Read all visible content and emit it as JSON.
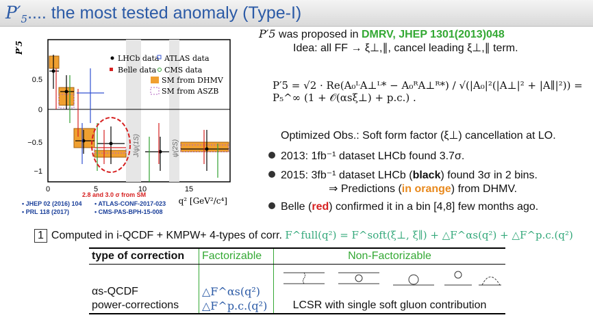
{
  "title": {
    "prefix": "P",
    "sup": "′",
    "sub": "5",
    "text": ".... the most tested anomaly (Type-I)"
  },
  "header": {
    "line1_sym": "P′5",
    "line1_text": " was proposed in ",
    "line1_ref": "DMRV, JHEP 1301(2013)048",
    "line2": "Idea: all FF → ξ⊥,∥, cancel leading ξ⊥,∥ term."
  },
  "equation": "P′5 = √2 · Re(A₀ᴸA⊥ᴸ* − A₀ᴿA⊥ᴿ*) / √(|A₀|²(|A⊥|² + |A∥|²)) = P₅^∞ (1 + 𝒪(αsξ⊥) + p.c.) .",
  "optimized": "Optimized Obs.: Soft form factor (ξ⊥) cancellation at LO.",
  "bullets": {
    "b1": "2013: 1fb⁻¹ dataset LHCb found 3.7σ.",
    "b2_a": "2015: 3fb⁻¹ dataset LHCb (",
    "b2_b": "black",
    "b2_c": ") found 3σ in 2 bins.",
    "b2_d": "⇒ Predictions (",
    "b2_e": "in orange",
    "b2_f": ") from DHMV.",
    "b3_a": "Belle (",
    "b3_b": "red",
    "b3_c": ") confirmed it in a bin [4,8] few months ago."
  },
  "computed": {
    "num": "1",
    "text": "Computed in i-QCDF + KMPW+ 4-types of corr. ",
    "formula": "F^full(q²) = F^soft(ξ⊥, ξ∥) + △F^αs(q²) + △F^p.c.(q²)"
  },
  "table": {
    "h1": "type of correction",
    "h2": "Factorizable",
    "h3": "Non-Factorizable",
    "r1c1": "αs-QCDF",
    "r1c2": "△F^αs(q²)",
    "r2c1": "power-corrections",
    "r2c2": "△F^p.c.(q²)",
    "r2c3": "LCSR with single soft gluon contribution"
  },
  "plot": {
    "ylabel": "P′5",
    "xlabel": "q² [GeV²/c⁴]",
    "yticks": [
      "0.5",
      "0",
      "−0.5",
      "−1"
    ],
    "xticks": [
      "0",
      "5",
      "10",
      "15"
    ],
    "legend": {
      "lhcb": "LHCb data",
      "belle": "Belle data",
      "atlas": "ATLAS data",
      "cms": "CMS data",
      "dhmv": "SM from DHMV",
      "aszb": "SM from ASZB"
    },
    "band1": "J/ψ(1S)",
    "band2": "ψ(2S)",
    "note": "2.8 and 3.0 σ from SM",
    "refs": [
      "JHEP 02 (2016) 104",
      "PRL 118 (2017)",
      "ATLAS-CONF-2017-023",
      "CMS-PAS-BPH-15-008"
    ],
    "colors": {
      "orange": "#f0a030",
      "purple": "#b060c0",
      "red": "#d62020",
      "blue": "#3050d0",
      "green": "#30a030"
    }
  }
}
